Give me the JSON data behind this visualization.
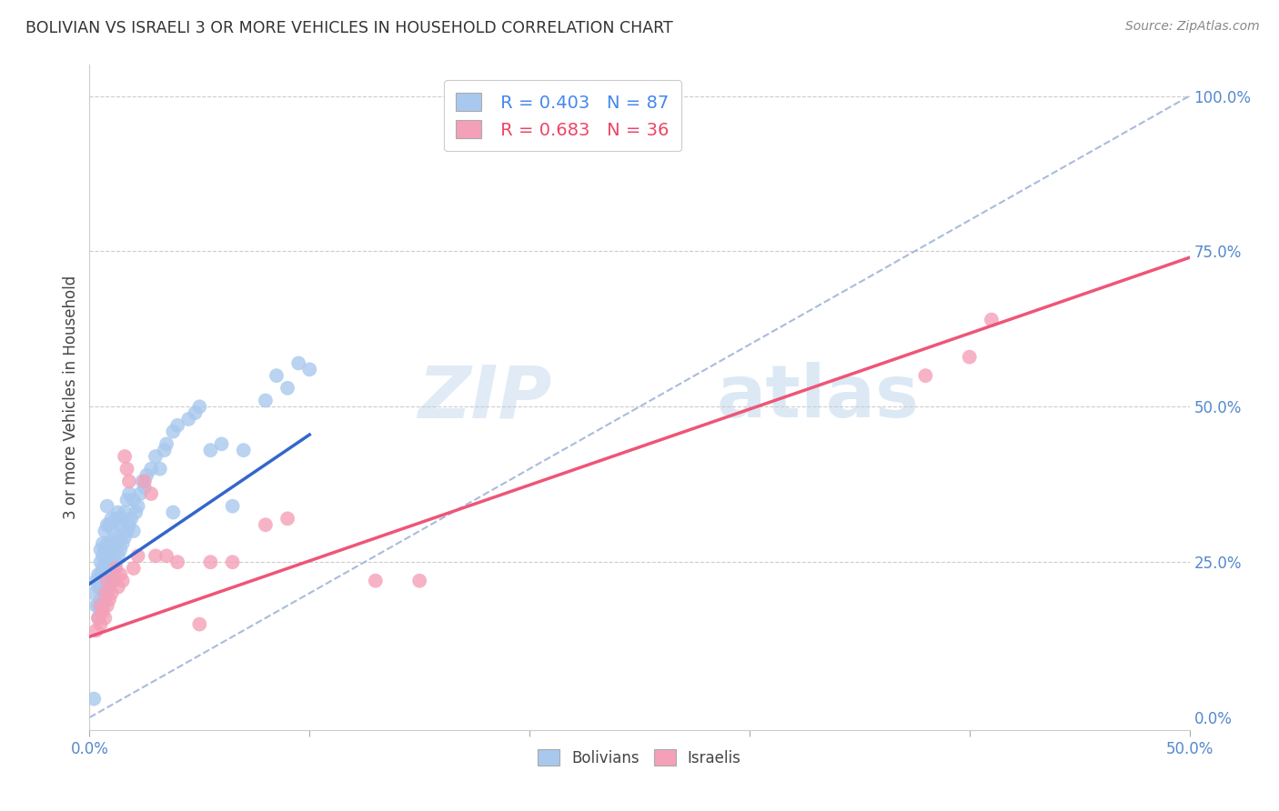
{
  "title": "BOLIVIAN VS ISRAELI 3 OR MORE VEHICLES IN HOUSEHOLD CORRELATION CHART",
  "source": "Source: ZipAtlas.com",
  "ylabel": "3 or more Vehicles in Household",
  "xlim": [
    0.0,
    0.5
  ],
  "ylim": [
    -0.02,
    1.05
  ],
  "xticklabels": [
    "0.0%",
    "",
    "",
    "",
    "",
    "50.0%"
  ],
  "xtick_vals": [
    0.0,
    0.1,
    0.2,
    0.3,
    0.4,
    0.5
  ],
  "ytick_vals": [
    0.0,
    0.25,
    0.5,
    0.75,
    1.0
  ],
  "yticklabels_right": [
    "0.0%",
    "25.0%",
    "50.0%",
    "75.0%",
    "100.0%"
  ],
  "legend_blue_r": "R = 0.403",
  "legend_blue_n": "N = 87",
  "legend_pink_r": "R = 0.683",
  "legend_pink_n": "N = 36",
  "blue_color": "#A8C8EE",
  "pink_color": "#F4A0B8",
  "blue_line_color": "#3366CC",
  "pink_line_color": "#EE5577",
  "diag_color": "#AABBDD",
  "grid_color": "#CCCCCC",
  "bg_color": "#FFFFFF",
  "blue_x": [
    0.002,
    0.003,
    0.003,
    0.004,
    0.004,
    0.004,
    0.004,
    0.005,
    0.005,
    0.005,
    0.005,
    0.005,
    0.005,
    0.006,
    0.006,
    0.006,
    0.006,
    0.006,
    0.006,
    0.007,
    0.007,
    0.007,
    0.007,
    0.007,
    0.008,
    0.008,
    0.008,
    0.008,
    0.008,
    0.008,
    0.009,
    0.009,
    0.009,
    0.009,
    0.01,
    0.01,
    0.01,
    0.01,
    0.011,
    0.011,
    0.011,
    0.012,
    0.012,
    0.012,
    0.013,
    0.013,
    0.013,
    0.014,
    0.014,
    0.015,
    0.015,
    0.016,
    0.016,
    0.017,
    0.017,
    0.018,
    0.018,
    0.019,
    0.02,
    0.02,
    0.021,
    0.022,
    0.023,
    0.024,
    0.025,
    0.026,
    0.028,
    0.03,
    0.032,
    0.034,
    0.035,
    0.038,
    0.04,
    0.045,
    0.05,
    0.06,
    0.065,
    0.07,
    0.08,
    0.085,
    0.09,
    0.095,
    0.1,
    0.048,
    0.055,
    0.038,
    0.002
  ],
  "blue_y": [
    0.2,
    0.18,
    0.22,
    0.16,
    0.18,
    0.21,
    0.23,
    0.17,
    0.19,
    0.21,
    0.23,
    0.25,
    0.27,
    0.18,
    0.2,
    0.22,
    0.24,
    0.26,
    0.28,
    0.19,
    0.22,
    0.24,
    0.27,
    0.3,
    0.2,
    0.22,
    0.25,
    0.28,
    0.31,
    0.34,
    0.21,
    0.24,
    0.27,
    0.31,
    0.22,
    0.25,
    0.28,
    0.32,
    0.24,
    0.27,
    0.3,
    0.25,
    0.28,
    0.32,
    0.26,
    0.29,
    0.33,
    0.27,
    0.31,
    0.28,
    0.32,
    0.29,
    0.33,
    0.3,
    0.35,
    0.31,
    0.36,
    0.32,
    0.3,
    0.35,
    0.33,
    0.34,
    0.36,
    0.38,
    0.37,
    0.39,
    0.4,
    0.42,
    0.4,
    0.43,
    0.44,
    0.46,
    0.47,
    0.48,
    0.5,
    0.44,
    0.34,
    0.43,
    0.51,
    0.55,
    0.53,
    0.57,
    0.56,
    0.49,
    0.43,
    0.33,
    0.03
  ],
  "pink_x": [
    0.003,
    0.004,
    0.005,
    0.005,
    0.006,
    0.007,
    0.007,
    0.008,
    0.008,
    0.009,
    0.01,
    0.011,
    0.012,
    0.013,
    0.014,
    0.015,
    0.016,
    0.017,
    0.018,
    0.02,
    0.022,
    0.025,
    0.028,
    0.03,
    0.035,
    0.04,
    0.05,
    0.055,
    0.065,
    0.08,
    0.09,
    0.13,
    0.15,
    0.38,
    0.4,
    0.41
  ],
  "pink_y": [
    0.14,
    0.16,
    0.15,
    0.18,
    0.17,
    0.16,
    0.2,
    0.18,
    0.22,
    0.19,
    0.2,
    0.22,
    0.24,
    0.21,
    0.23,
    0.22,
    0.42,
    0.4,
    0.38,
    0.24,
    0.26,
    0.38,
    0.36,
    0.26,
    0.26,
    0.25,
    0.15,
    0.25,
    0.25,
    0.31,
    0.32,
    0.22,
    0.22,
    0.55,
    0.58,
    0.64
  ],
  "blue_trend_x": [
    0.0,
    0.1
  ],
  "blue_trend_y": [
    0.215,
    0.455
  ],
  "pink_trend_x": [
    0.0,
    0.5
  ],
  "pink_trend_y": [
    0.13,
    0.74
  ]
}
